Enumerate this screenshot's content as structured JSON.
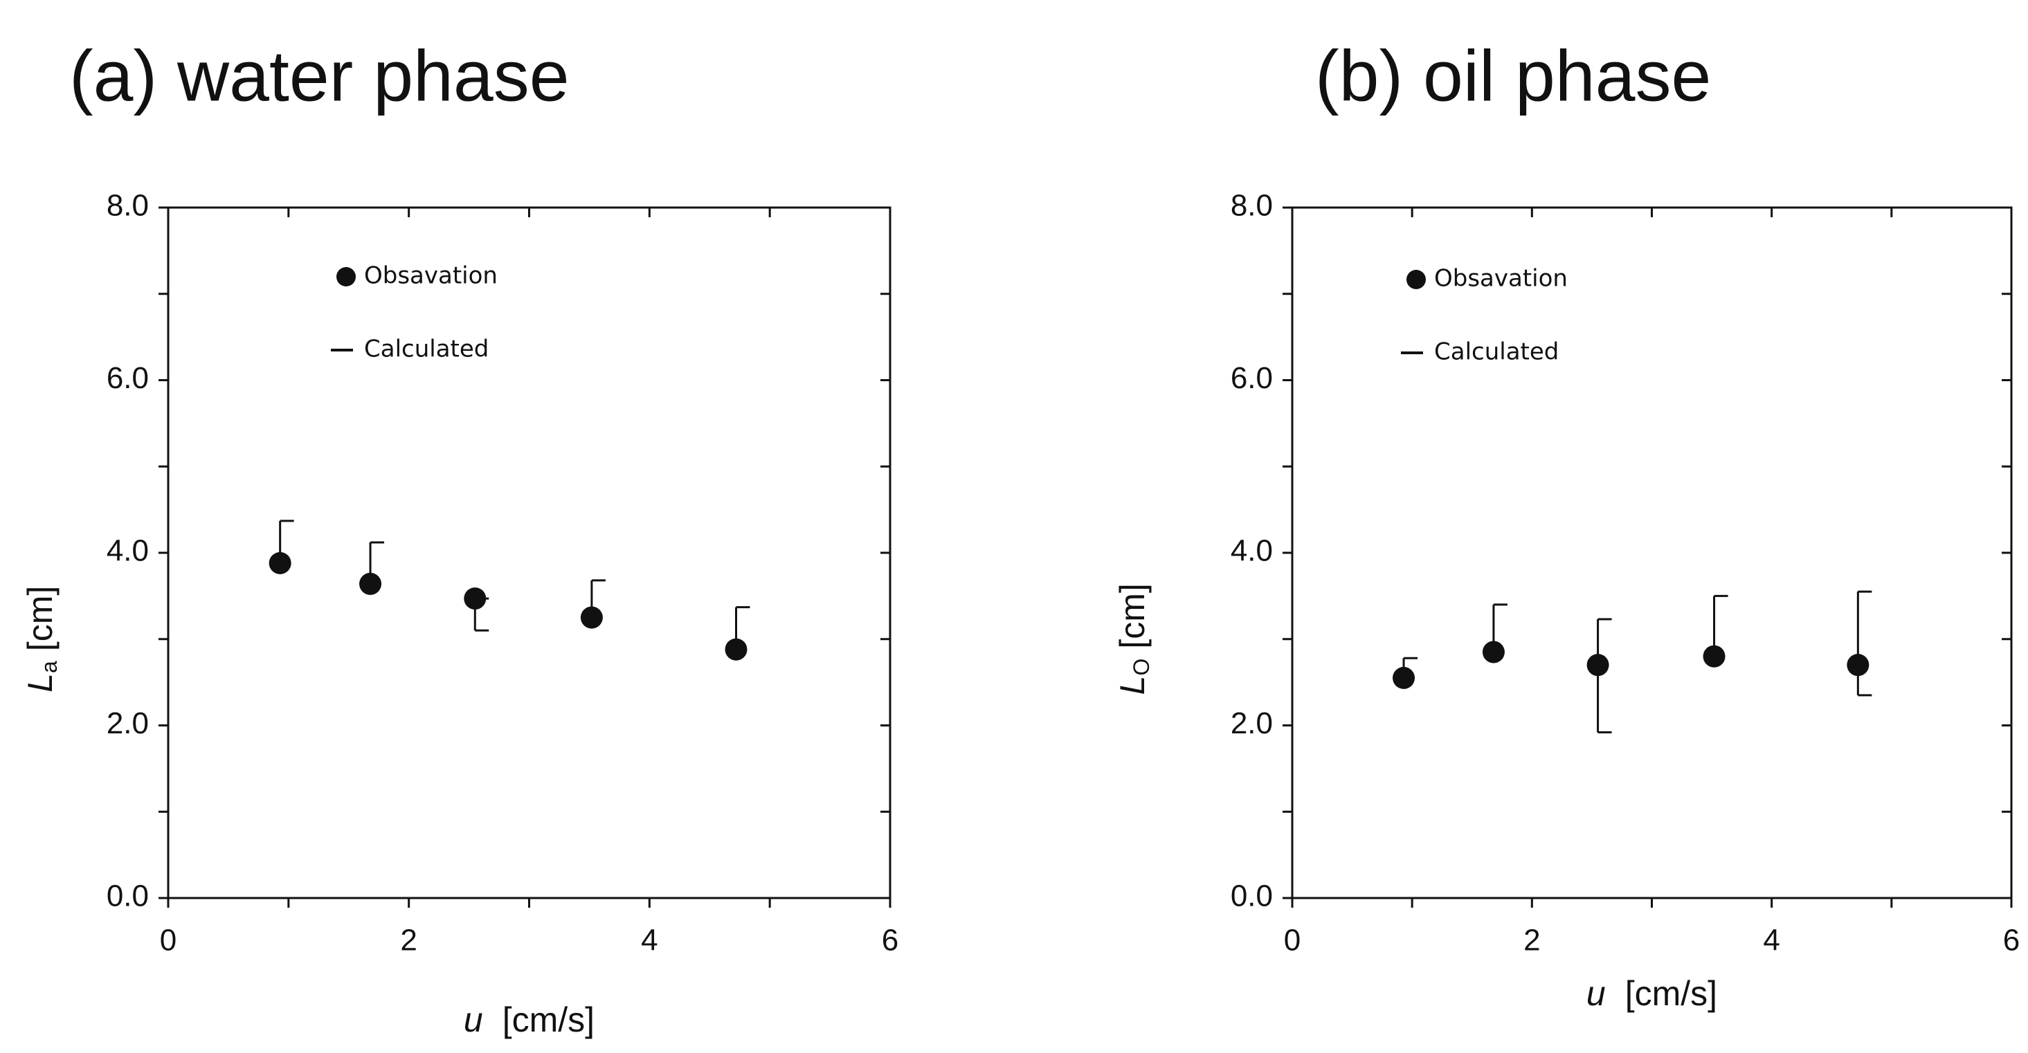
{
  "colors": {
    "ink": "#111111",
    "background": "#ffffff"
  },
  "chart_data": [
    {
      "type": "scatter",
      "title": "(a) water phase",
      "xlabel": {
        "var": "u",
        "unit": "[cm/s]"
      },
      "ylabel": {
        "var": "L",
        "sub": "a",
        "unit": "[cm]"
      },
      "xlim": [
        0,
        6
      ],
      "ylim": [
        0,
        8
      ],
      "xticks": [
        0,
        2,
        4,
        6
      ],
      "xtick_labels": [
        "0",
        "2",
        "4",
        "6"
      ],
      "yticks": [
        0,
        2,
        4,
        6,
        8
      ],
      "ytick_labels": [
        "0.0",
        "2.0",
        "4.0",
        "6.0",
        "8.0"
      ],
      "legend": {
        "observation": "Obsavation",
        "calculated": "Calculated",
        "position": "top-left"
      },
      "series": [
        {
          "name": "Obsavation",
          "marker": "filled-circle",
          "x": [
            0.93,
            1.68,
            2.55,
            3.52,
            4.72
          ],
          "y": [
            3.88,
            3.64,
            3.47,
            3.25,
            2.88
          ]
        },
        {
          "name": "Calculated",
          "marker": "error-bar",
          "x": [
            0.93,
            1.68,
            2.55,
            3.52,
            4.72
          ],
          "y_low": [
            3.88,
            3.64,
            3.1,
            3.25,
            2.88
          ],
          "y_high": [
            4.37,
            4.12,
            3.47,
            3.68,
            3.37
          ]
        }
      ]
    },
    {
      "type": "scatter",
      "title": "(b) oil phase",
      "xlabel": {
        "var": "u",
        "unit": "[cm/s]"
      },
      "ylabel": {
        "var": "L",
        "sub": "O",
        "unit": "[cm]"
      },
      "xlim": [
        0,
        6
      ],
      "ylim": [
        0,
        8
      ],
      "xticks": [
        0,
        2,
        4,
        6
      ],
      "xtick_labels": [
        "0",
        "2",
        "4",
        "6"
      ],
      "yticks": [
        0,
        2,
        4,
        6,
        8
      ],
      "ytick_labels": [
        "0.0",
        "2.0",
        "4.0",
        "6.0",
        "8.0"
      ],
      "legend": {
        "observation": "Obsavation",
        "calculated": "Calculated",
        "position": "top-left"
      },
      "series": [
        {
          "name": "Obsavation",
          "marker": "filled-circle",
          "x": [
            0.93,
            1.68,
            2.55,
            3.52,
            4.72
          ],
          "y": [
            2.55,
            2.85,
            2.7,
            2.8,
            2.7
          ]
        },
        {
          "name": "Calculated",
          "marker": "error-bar",
          "x": [
            0.93,
            1.68,
            2.55,
            3.52,
            4.72
          ],
          "y_low": [
            2.55,
            2.85,
            1.92,
            2.8,
            2.35
          ],
          "y_high": [
            2.78,
            3.4,
            3.23,
            3.5,
            3.55
          ]
        }
      ]
    }
  ]
}
